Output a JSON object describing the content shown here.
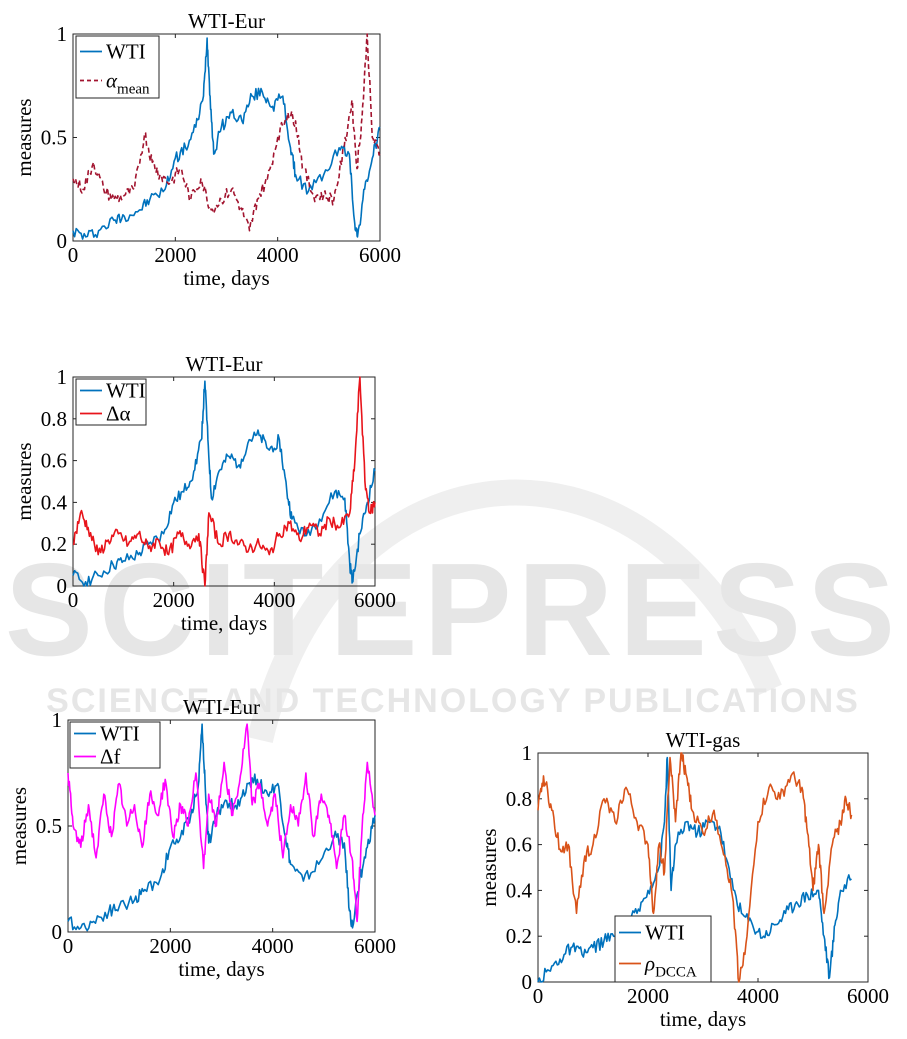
{
  "watermark": {
    "main": "SCITEPRESS",
    "sub": "SCIENCE AND TECHNOLOGY PUBLICATIONS"
  },
  "colors": {
    "wti": "#0072BD",
    "alpha_mean": "#A2142F",
    "delta_alpha": "#E8141B",
    "delta_f": "#FF00FF",
    "rho": "#D95319",
    "watermark": "#E6E6E6"
  },
  "chart_data": [
    {
      "type": "line",
      "title": "WTI-Eur",
      "xlabel": "time, days",
      "ylabel": "measures",
      "xlim": [
        0,
        6000
      ],
      "ylim": [
        0,
        1
      ],
      "xticks": [
        "0",
        "2000",
        "4000",
        "6000"
      ],
      "yticks": [
        "0",
        "0.5",
        "1"
      ],
      "legend_position": "top-left",
      "series": [
        {
          "name": "WTI",
          "style": "solid",
          "x": [
            0,
            250,
            500,
            800,
            1000,
            1300,
            1500,
            1800,
            2000,
            2200,
            2400,
            2550,
            2620,
            2680,
            2750,
            2900,
            3100,
            3300,
            3500,
            3700,
            3900,
            4100,
            4250,
            4350,
            4600,
            4900,
            5200,
            5400,
            5500,
            5560,
            5700,
            5850,
            6000
          ],
          "y": [
            0.05,
            0.02,
            0.05,
            0.1,
            0.12,
            0.15,
            0.2,
            0.25,
            0.4,
            0.45,
            0.55,
            0.7,
            0.98,
            0.7,
            0.42,
            0.55,
            0.62,
            0.58,
            0.7,
            0.72,
            0.65,
            0.7,
            0.45,
            0.32,
            0.24,
            0.32,
            0.45,
            0.42,
            0.1,
            0.02,
            0.25,
            0.4,
            0.55
          ]
        },
        {
          "name": "α_mean",
          "style": "dashed",
          "x": [
            0,
            200,
            400,
            600,
            800,
            1000,
            1200,
            1400,
            1550,
            1700,
            1900,
            2100,
            2300,
            2500,
            2700,
            2900,
            3100,
            3300,
            3450,
            3600,
            3800,
            4000,
            4200,
            4350,
            4500,
            4700,
            4900,
            5100,
            5300,
            5450,
            5550,
            5650,
            5750,
            5850,
            6000
          ],
          "y": [
            0.3,
            0.25,
            0.38,
            0.25,
            0.2,
            0.22,
            0.25,
            0.52,
            0.38,
            0.32,
            0.28,
            0.35,
            0.2,
            0.3,
            0.15,
            0.2,
            0.25,
            0.15,
            0.05,
            0.2,
            0.3,
            0.5,
            0.62,
            0.58,
            0.35,
            0.22,
            0.22,
            0.2,
            0.45,
            0.68,
            0.35,
            0.6,
            1.0,
            0.5,
            0.42
          ]
        }
      ]
    },
    {
      "type": "line",
      "title": "WTI-Eur",
      "xlabel": "time, days",
      "ylabel": "measures",
      "xlim": [
        0,
        6000
      ],
      "ylim": [
        0,
        1
      ],
      "xticks": [
        "0",
        "2000",
        "4000",
        "6000"
      ],
      "yticks": [
        "0",
        "0.2",
        "0.4",
        "0.6",
        "0.8",
        "1"
      ],
      "legend_position": "top-left",
      "series": [
        {
          "name": "WTI",
          "style": "solid",
          "x": [
            0,
            250,
            500,
            800,
            1000,
            1300,
            1500,
            1800,
            2000,
            2200,
            2400,
            2550,
            2620,
            2680,
            2750,
            2900,
            3100,
            3300,
            3500,
            3700,
            3900,
            4100,
            4250,
            4350,
            4600,
            4900,
            5200,
            5400,
            5500,
            5560,
            5700,
            5850,
            6000
          ],
          "y": [
            0.05,
            0.02,
            0.05,
            0.1,
            0.12,
            0.15,
            0.2,
            0.25,
            0.4,
            0.45,
            0.55,
            0.7,
            0.98,
            0.7,
            0.42,
            0.55,
            0.62,
            0.58,
            0.7,
            0.72,
            0.65,
            0.7,
            0.45,
            0.32,
            0.24,
            0.32,
            0.45,
            0.42,
            0.1,
            0.02,
            0.25,
            0.4,
            0.55
          ]
        },
        {
          "name": "Δα",
          "style": "solid",
          "x": [
            0,
            150,
            300,
            500,
            700,
            900,
            1100,
            1300,
            1500,
            1700,
            1900,
            2100,
            2300,
            2500,
            2620,
            2700,
            2900,
            3100,
            3300,
            3500,
            3700,
            3900,
            4100,
            4300,
            4500,
            4700,
            4900,
            5100,
            5300,
            5500,
            5600,
            5700,
            5800,
            5900,
            6000
          ],
          "y": [
            0.2,
            0.35,
            0.28,
            0.15,
            0.22,
            0.25,
            0.2,
            0.25,
            0.18,
            0.22,
            0.15,
            0.25,
            0.2,
            0.25,
            0.0,
            0.35,
            0.2,
            0.25,
            0.2,
            0.18,
            0.2,
            0.15,
            0.25,
            0.3,
            0.22,
            0.3,
            0.25,
            0.32,
            0.28,
            0.35,
            0.6,
            1.0,
            0.5,
            0.35,
            0.4
          ]
        }
      ]
    },
    {
      "type": "line",
      "title": "WTI-Eur",
      "xlabel": "time, days",
      "ylabel": "measures",
      "xlim": [
        0,
        6000
      ],
      "ylim": [
        0,
        1
      ],
      "xticks": [
        "0",
        "2000",
        "4000",
        "6000"
      ],
      "yticks": [
        "0",
        "0.5",
        "1"
      ],
      "legend_position": "top-left",
      "series": [
        {
          "name": "WTI",
          "style": "solid",
          "x": [
            0,
            250,
            500,
            800,
            1000,
            1300,
            1500,
            1800,
            2000,
            2200,
            2400,
            2550,
            2620,
            2680,
            2750,
            2900,
            3100,
            3300,
            3500,
            3700,
            3900,
            4100,
            4250,
            4350,
            4600,
            4900,
            5200,
            5400,
            5500,
            5560,
            5700,
            5850,
            6000
          ],
          "y": [
            0.05,
            0.02,
            0.05,
            0.1,
            0.12,
            0.15,
            0.2,
            0.25,
            0.4,
            0.45,
            0.55,
            0.7,
            0.98,
            0.7,
            0.42,
            0.55,
            0.62,
            0.58,
            0.7,
            0.72,
            0.65,
            0.7,
            0.45,
            0.32,
            0.24,
            0.32,
            0.45,
            0.42,
            0.1,
            0.02,
            0.25,
            0.4,
            0.55
          ]
        },
        {
          "name": "Δf",
          "style": "solid",
          "x": [
            0,
            100,
            250,
            400,
            550,
            700,
            850,
            1000,
            1150,
            1300,
            1450,
            1600,
            1750,
            1900,
            2050,
            2200,
            2350,
            2500,
            2650,
            2750,
            2900,
            3050,
            3200,
            3350,
            3500,
            3600,
            3750,
            3900,
            4050,
            4200,
            4350,
            4500,
            4650,
            4800,
            4950,
            5100,
            5250,
            5400,
            5550,
            5650,
            5750,
            5850,
            6000
          ],
          "y": [
            0.75,
            0.5,
            0.4,
            0.6,
            0.35,
            0.65,
            0.45,
            0.7,
            0.5,
            0.6,
            0.4,
            0.65,
            0.55,
            0.72,
            0.45,
            0.6,
            0.5,
            0.75,
            0.3,
            0.65,
            0.5,
            0.8,
            0.55,
            0.7,
            0.98,
            0.6,
            0.7,
            0.5,
            0.65,
            0.35,
            0.6,
            0.5,
            0.75,
            0.45,
            0.65,
            0.55,
            0.3,
            0.55,
            0.35,
            0.05,
            0.5,
            0.8,
            0.55
          ]
        }
      ]
    },
    {
      "type": "line",
      "title": "WTI-gas",
      "xlabel": "time, days",
      "ylabel": "measures",
      "xlim": [
        0,
        6000
      ],
      "ylim": [
        0,
        1
      ],
      "xticks": [
        "0",
        "2000",
        "4000",
        "6000"
      ],
      "yticks": [
        "0",
        "0.2",
        "0.4",
        "0.6",
        "0.8",
        "1"
      ],
      "legend_position": "bottom-left",
      "series": [
        {
          "name": "WTI",
          "style": "solid",
          "x": [
            0,
            200,
            400,
            600,
            800,
            1000,
            1200,
            1400,
            1600,
            1800,
            2000,
            2200,
            2300,
            2350,
            2420,
            2500,
            2700,
            2900,
            3100,
            3300,
            3500,
            3700,
            3900,
            4100,
            4300,
            4500,
            4700,
            4900,
            5100,
            5200,
            5300,
            5400,
            5500,
            5700
          ],
          "y": [
            0.0,
            0.05,
            0.1,
            0.15,
            0.12,
            0.15,
            0.18,
            0.2,
            0.25,
            0.3,
            0.4,
            0.5,
            0.7,
            0.98,
            0.4,
            0.6,
            0.7,
            0.65,
            0.7,
            0.68,
            0.45,
            0.3,
            0.25,
            0.2,
            0.25,
            0.3,
            0.35,
            0.38,
            0.4,
            0.2,
            0.02,
            0.25,
            0.4,
            0.45
          ]
        },
        {
          "name": "ρ_DCCA",
          "style": "solid",
          "x": [
            0,
            100,
            250,
            400,
            550,
            700,
            850,
            1000,
            1200,
            1400,
            1600,
            1800,
            2000,
            2100,
            2200,
            2300,
            2400,
            2500,
            2600,
            2700,
            2800,
            3000,
            3200,
            3400,
            3550,
            3650,
            3800,
            4000,
            4200,
            4400,
            4600,
            4800,
            4900,
            5000,
            5100,
            5200,
            5350,
            5500,
            5600,
            5700
          ],
          "y": [
            0.75,
            0.9,
            0.75,
            0.58,
            0.6,
            0.3,
            0.55,
            0.6,
            0.8,
            0.7,
            0.85,
            0.7,
            0.6,
            0.3,
            0.6,
            0.48,
            0.98,
            0.7,
            1.0,
            0.9,
            0.75,
            0.65,
            0.75,
            0.55,
            0.35,
            0.0,
            0.2,
            0.7,
            0.85,
            0.8,
            0.9,
            0.85,
            0.65,
            0.4,
            0.6,
            0.3,
            0.6,
            0.7,
            0.8,
            0.73
          ]
        }
      ]
    }
  ]
}
